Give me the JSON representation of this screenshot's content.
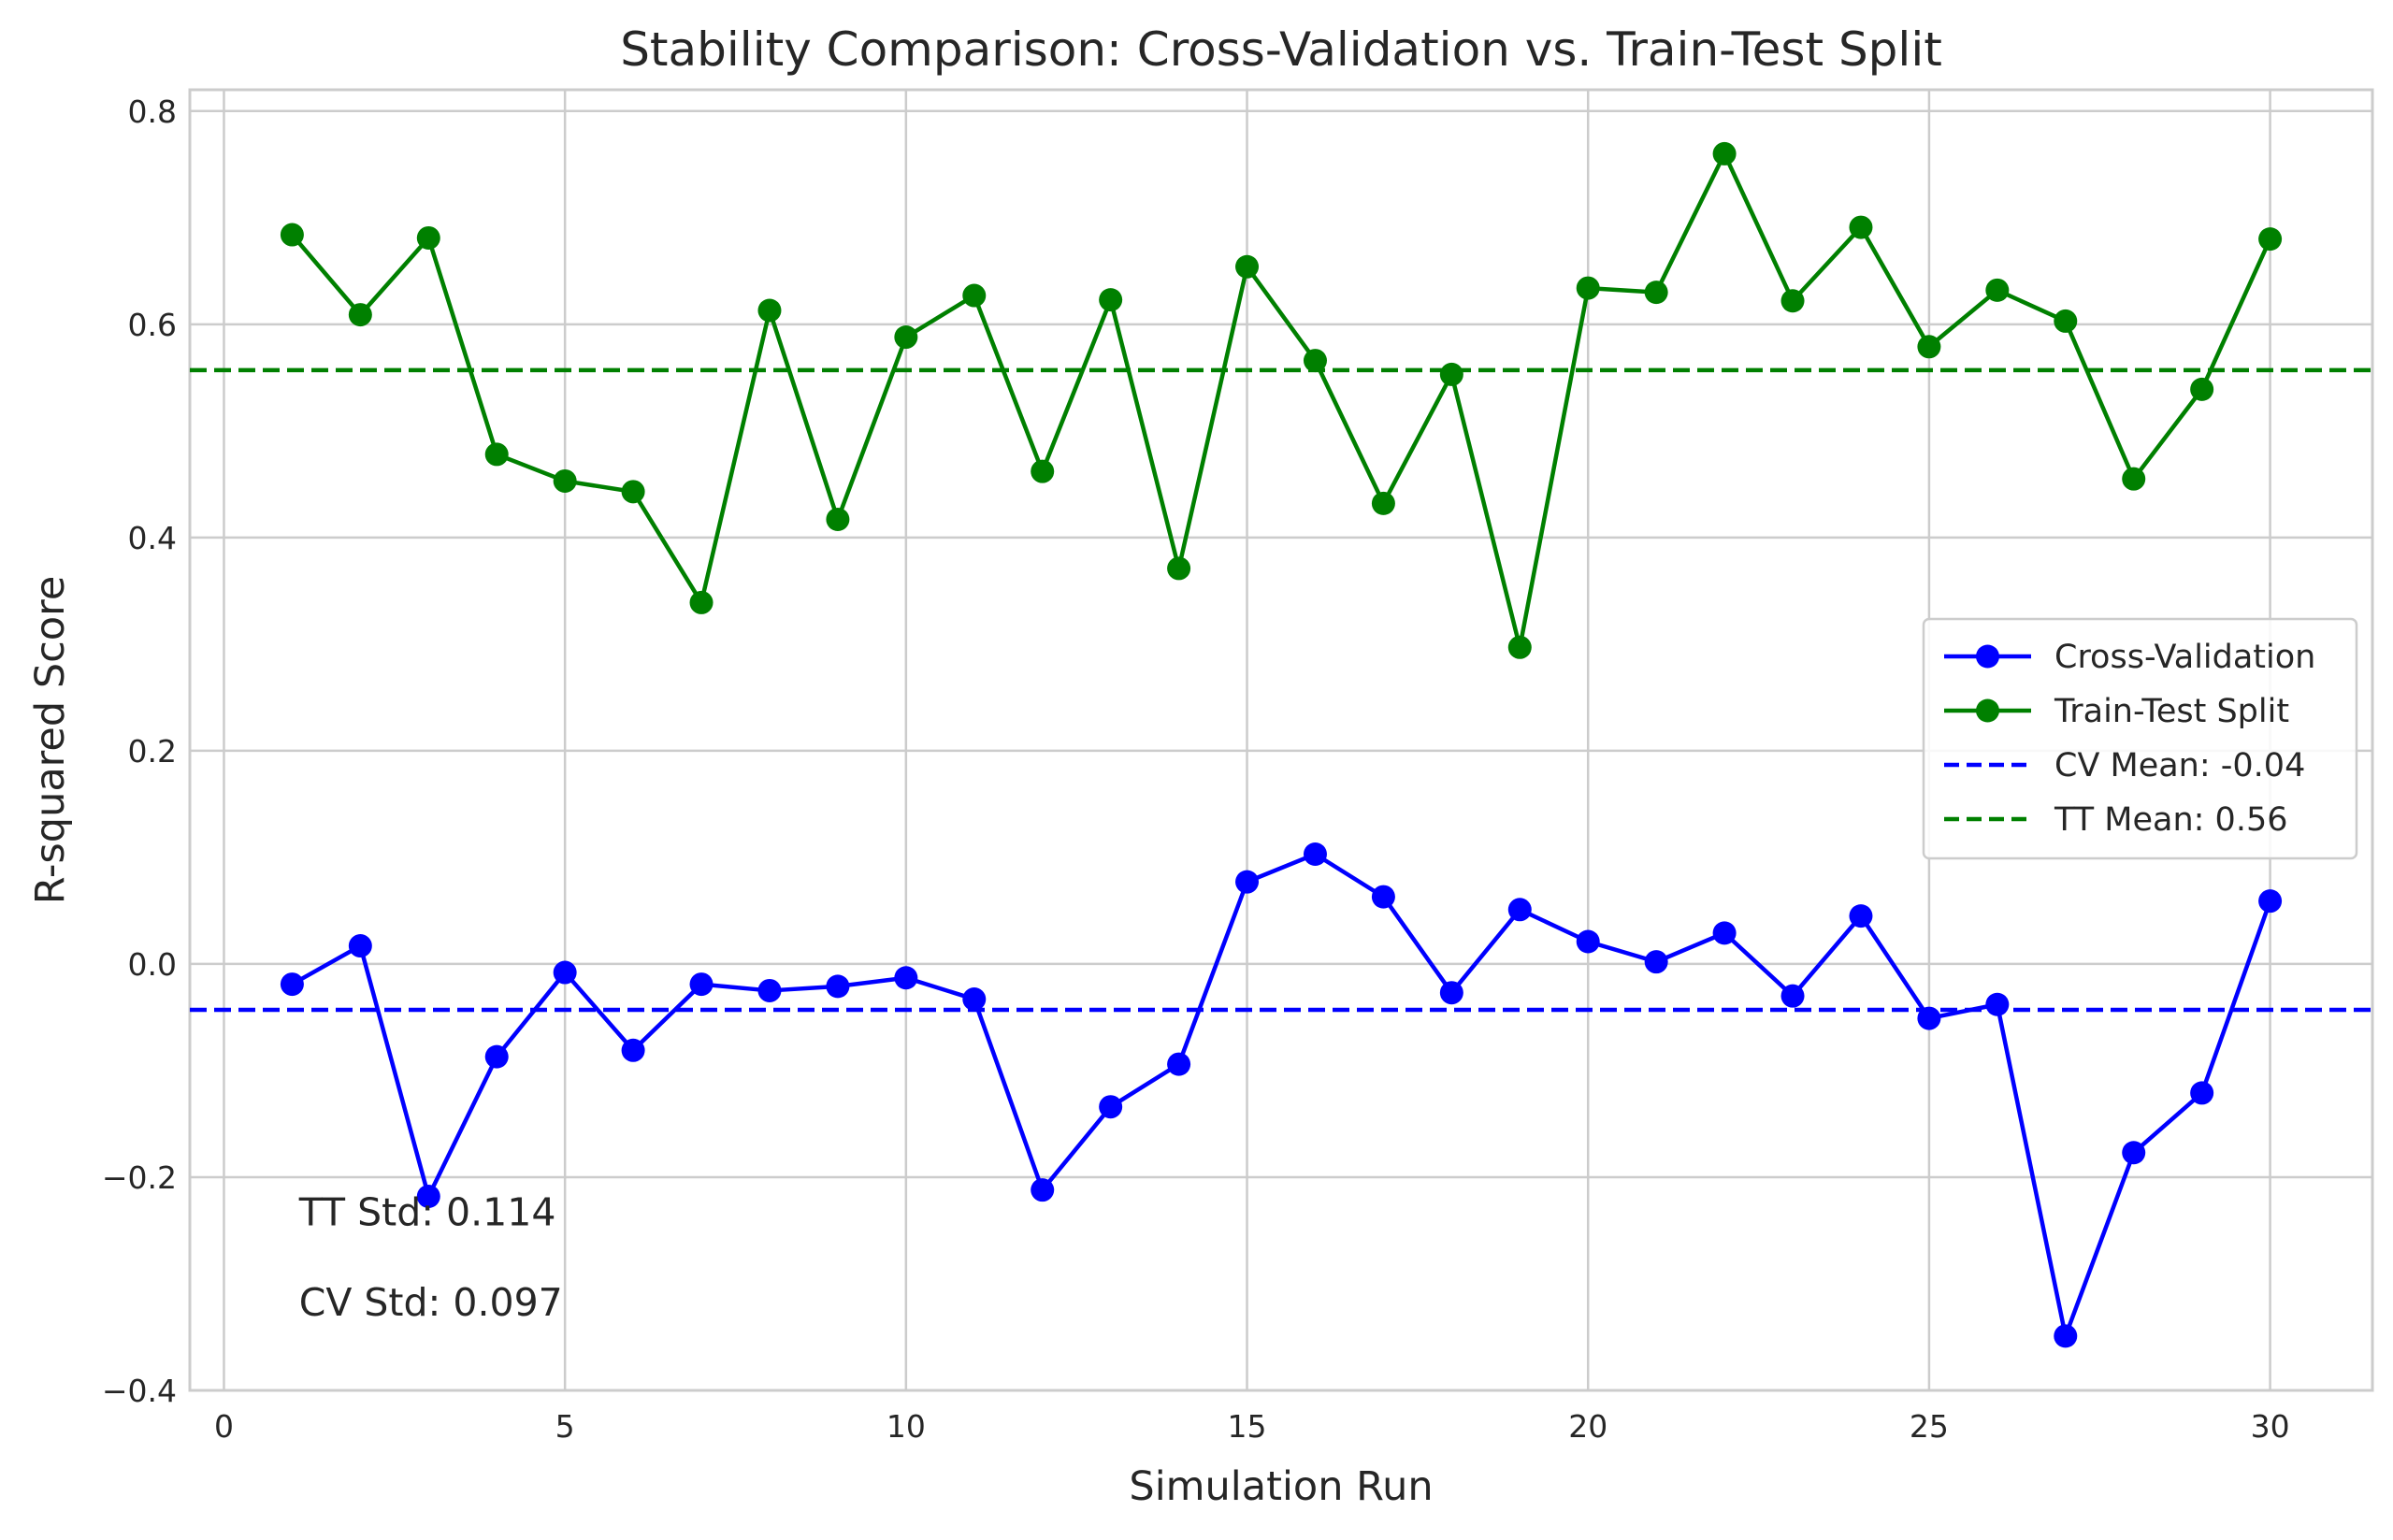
{
  "chart_data": {
    "type": "line",
    "title": "Stability Comparison: Cross-Validation vs. Train-Test Split",
    "xlabel": "Simulation Run",
    "ylabel": "R-squared Score",
    "xlim": [
      -0.5,
      31.5
    ],
    "ylim": [
      -0.4,
      0.82
    ],
    "xticks": [
      0,
      5,
      10,
      15,
      20,
      25,
      30
    ],
    "xtick_labels": [
      "0",
      "5",
      "10",
      "15",
      "20",
      "25",
      "30"
    ],
    "yticks": [
      -0.4,
      -0.2,
      0.0,
      0.2,
      0.4,
      0.6,
      0.8
    ],
    "ytick_labels": [
      "−0.4",
      "−0.2",
      "0.0",
      "0.2",
      "0.4",
      "0.6",
      "0.8"
    ],
    "grid": true,
    "legend_position": "center-right",
    "x": [
      1,
      2,
      3,
      4,
      5,
      6,
      7,
      8,
      9,
      10,
      11,
      12,
      13,
      14,
      15,
      16,
      17,
      18,
      19,
      20,
      21,
      22,
      23,
      24,
      25,
      26,
      27,
      28,
      29,
      30
    ],
    "series": [
      {
        "name": "Cross-Validation",
        "color": "#0000ff",
        "marker": "circle",
        "values": [
          -0.019,
          0.017,
          -0.218,
          -0.087,
          -0.008,
          -0.081,
          -0.019,
          -0.025,
          -0.021,
          -0.013,
          -0.033,
          -0.212,
          -0.134,
          -0.094,
          0.077,
          0.103,
          0.063,
          -0.027,
          0.051,
          0.021,
          0.002,
          0.029,
          -0.03,
          0.045,
          -0.051,
          -0.038,
          -0.349,
          -0.177,
          -0.121,
          0.059
        ]
      },
      {
        "name": "Train-Test Split",
        "color": "#008000",
        "marker": "circle",
        "values": [
          0.684,
          0.609,
          0.681,
          0.478,
          0.453,
          0.443,
          0.339,
          0.613,
          0.417,
          0.588,
          0.627,
          0.462,
          0.623,
          0.371,
          0.654,
          0.566,
          0.432,
          0.553,
          0.297,
          0.634,
          0.63,
          0.76,
          0.622,
          0.691,
          0.579,
          0.632,
          0.603,
          0.455,
          0.539,
          0.68
        ]
      }
    ],
    "reference_lines": [
      {
        "name": "CV Mean: -0.04",
        "value": -0.043,
        "color": "#0000ff",
        "style": "dashed"
      },
      {
        "name": "TT Mean: 0.56",
        "value": 0.557,
        "color": "#008000",
        "style": "dashed"
      }
    ],
    "annotations": [
      {
        "text": "TT Std: 0.114",
        "x": 1.1,
        "y": -0.245
      },
      {
        "text": "CV Std: 0.097",
        "x": 1.1,
        "y": -0.33
      }
    ]
  }
}
